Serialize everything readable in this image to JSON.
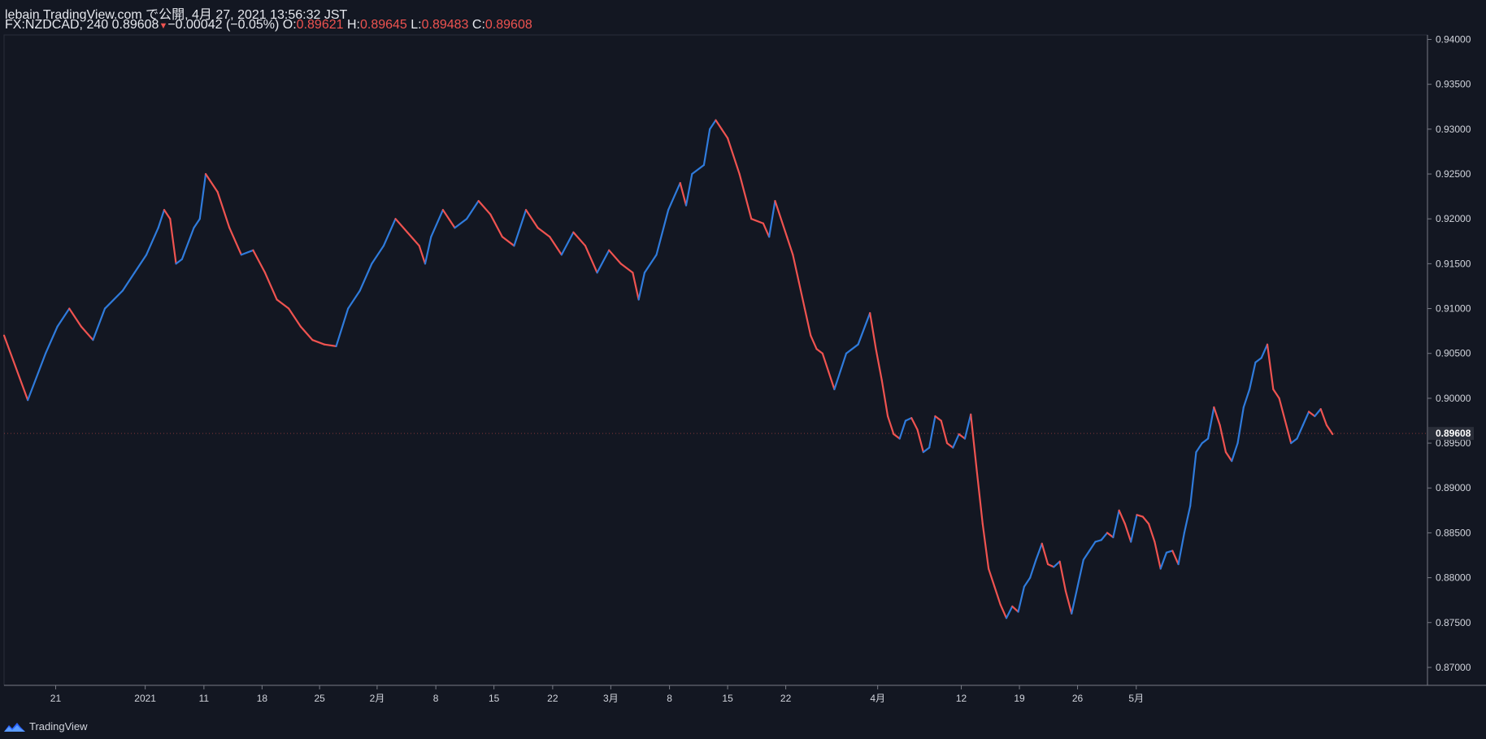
{
  "header": {
    "publish_line": "lebain TradingView.com で公開, 4月 27, 2021 13:56:32 JST",
    "symbol": "FX:NZDCAD, 240",
    "last": "0.89608",
    "change_arrow": "▼",
    "change": "−0.00042 (−0.05%)",
    "o_label": "O:",
    "o_value": "0.89621",
    "h_label": "H:",
    "h_value": "0.89645",
    "l_label": "L:",
    "l_value": "0.89483",
    "c_label": "C:",
    "c_value": "0.89608"
  },
  "footer": {
    "brand": "TradingView",
    "logo_icon": "tradingview-logo-icon"
  },
  "colors": {
    "background": "#131722",
    "up": "#2f7bdc",
    "down": "#ef5350",
    "axis": "#787b86",
    "text": "#d1d4dc"
  },
  "chart_data": {
    "type": "line",
    "series": [
      {
        "values": [
          [
            0,
            0.907
          ],
          [
            4,
            0.8998
          ],
          [
            7,
            0.905
          ],
          [
            9,
            0.908
          ],
          [
            11,
            0.91
          ],
          [
            13,
            0.908
          ],
          [
            15,
            0.9065
          ],
          [
            17,
            0.91
          ],
          [
            20,
            0.912
          ],
          [
            22,
            0.914
          ],
          [
            24,
            0.916
          ],
          [
            26,
            0.919
          ],
          [
            27,
            0.921
          ],
          [
            28,
            0.92
          ],
          [
            29,
            0.915
          ],
          [
            30,
            0.9155
          ],
          [
            32,
            0.919
          ],
          [
            33,
            0.92
          ],
          [
            34,
            0.925
          ],
          [
            36,
            0.923
          ],
          [
            38,
            0.919
          ],
          [
            40,
            0.916
          ],
          [
            42,
            0.9165
          ],
          [
            44,
            0.914
          ],
          [
            46,
            0.911
          ],
          [
            48,
            0.91
          ],
          [
            50,
            0.908
          ],
          [
            52,
            0.9065
          ],
          [
            54,
            0.906
          ],
          [
            56,
            0.9058
          ],
          [
            58,
            0.91
          ],
          [
            60,
            0.912
          ],
          [
            62,
            0.915
          ],
          [
            64,
            0.917
          ],
          [
            66,
            0.92
          ],
          [
            68,
            0.9185
          ],
          [
            70,
            0.917
          ],
          [
            71,
            0.915
          ],
          [
            72,
            0.918
          ],
          [
            74,
            0.921
          ],
          [
            76,
            0.919
          ],
          [
            78,
            0.92
          ],
          [
            80,
            0.922
          ],
          [
            82,
            0.9205
          ],
          [
            84,
            0.918
          ],
          [
            86,
            0.917
          ],
          [
            88,
            0.921
          ],
          [
            90,
            0.919
          ],
          [
            92,
            0.918
          ],
          [
            94,
            0.916
          ],
          [
            96,
            0.9185
          ],
          [
            98,
            0.917
          ],
          [
            100,
            0.914
          ],
          [
            102,
            0.9165
          ],
          [
            104,
            0.915
          ],
          [
            106,
            0.914
          ],
          [
            107,
            0.911
          ],
          [
            108,
            0.914
          ],
          [
            110,
            0.916
          ],
          [
            112,
            0.921
          ],
          [
            114,
            0.924
          ],
          [
            115,
            0.9215
          ],
          [
            116,
            0.925
          ],
          [
            118,
            0.926
          ],
          [
            119,
            0.93
          ],
          [
            120,
            0.931
          ],
          [
            121,
            0.93
          ],
          [
            122,
            0.929
          ],
          [
            124,
            0.925
          ],
          [
            126,
            0.92
          ],
          [
            128,
            0.9195
          ],
          [
            129,
            0.918
          ],
          [
            130,
            0.922
          ],
          [
            132,
            0.918
          ],
          [
            133,
            0.916
          ],
          [
            134,
            0.913
          ],
          [
            135,
            0.91
          ],
          [
            136,
            0.907
          ],
          [
            137,
            0.9055
          ],
          [
            138,
            0.905
          ],
          [
            139,
            0.903
          ],
          [
            140,
            0.901
          ],
          [
            141,
            0.903
          ],
          [
            142,
            0.905
          ],
          [
            144,
            0.906
          ],
          [
            146,
            0.9095
          ],
          [
            147,
            0.9055
          ],
          [
            148,
            0.902
          ],
          [
            149,
            0.898
          ],
          [
            150,
            0.896
          ],
          [
            151,
            0.8955
          ],
          [
            152,
            0.8975
          ],
          [
            153,
            0.8978
          ],
          [
            154,
            0.8965
          ],
          [
            155,
            0.894
          ],
          [
            156,
            0.8945
          ],
          [
            157,
            0.898
          ],
          [
            158,
            0.8975
          ],
          [
            159,
            0.895
          ],
          [
            160,
            0.8945
          ],
          [
            161,
            0.896
          ],
          [
            162,
            0.8955
          ],
          [
            163,
            0.8982
          ],
          [
            164,
            0.892
          ],
          [
            165,
            0.886
          ],
          [
            166,
            0.881
          ],
          [
            167,
            0.879
          ],
          [
            168,
            0.877
          ],
          [
            169,
            0.8755
          ],
          [
            170,
            0.8768
          ],
          [
            171,
            0.8762
          ],
          [
            172,
            0.879
          ],
          [
            173,
            0.88
          ],
          [
            174,
            0.882
          ],
          [
            175,
            0.8838
          ],
          [
            176,
            0.8815
          ],
          [
            177,
            0.8812
          ],
          [
            178,
            0.8818
          ],
          [
            179,
            0.8785
          ],
          [
            180,
            0.876
          ],
          [
            181,
            0.879
          ],
          [
            182,
            0.882
          ],
          [
            183,
            0.883
          ],
          [
            184,
            0.884
          ],
          [
            185,
            0.8842
          ],
          [
            186,
            0.885
          ],
          [
            187,
            0.8845
          ],
          [
            188,
            0.8875
          ],
          [
            189,
            0.886
          ],
          [
            190,
            0.884
          ],
          [
            191,
            0.887
          ],
          [
            192,
            0.8868
          ],
          [
            193,
            0.886
          ],
          [
            194,
            0.884
          ],
          [
            195,
            0.881
          ],
          [
            196,
            0.8828
          ],
          [
            197,
            0.883
          ],
          [
            198,
            0.8815
          ],
          [
            199,
            0.885
          ],
          [
            200,
            0.888
          ],
          [
            201,
            0.894
          ],
          [
            202,
            0.895
          ],
          [
            203,
            0.8955
          ],
          [
            204,
            0.899
          ],
          [
            205,
            0.897
          ],
          [
            206,
            0.894
          ],
          [
            207,
            0.893
          ],
          [
            208,
            0.895
          ],
          [
            209,
            0.899
          ],
          [
            210,
            0.901
          ],
          [
            211,
            0.904
          ],
          [
            212,
            0.9045
          ],
          [
            213,
            0.906
          ],
          [
            214,
            0.901
          ],
          [
            215,
            0.9
          ],
          [
            216,
            0.8975
          ],
          [
            217,
            0.895
          ],
          [
            218,
            0.8955
          ],
          [
            219,
            0.897
          ],
          [
            220,
            0.8985
          ],
          [
            221,
            0.898
          ],
          [
            222,
            0.8988
          ],
          [
            223,
            0.897
          ],
          [
            224,
            0.896
          ]
        ]
      }
    ],
    "x_range": [
      0,
      240
    ],
    "x_ticks": [
      {
        "x": 8.7,
        "label": "21"
      },
      {
        "x": 23.8,
        "label": "2021"
      },
      {
        "x": 33.7,
        "label": "11"
      },
      {
        "x": 43.5,
        "label": "18"
      },
      {
        "x": 53.2,
        "label": "25"
      },
      {
        "x": 62.9,
        "label": "2月"
      },
      {
        "x": 72.8,
        "label": "8"
      },
      {
        "x": 82.6,
        "label": "15"
      },
      {
        "x": 92.5,
        "label": "22"
      },
      {
        "x": 102.3,
        "label": "3月"
      },
      {
        "x": 112.2,
        "label": "8"
      },
      {
        "x": 122.0,
        "label": "15"
      },
      {
        "x": 131.8,
        "label": "22"
      },
      {
        "x": 147.3,
        "label": "4月"
      },
      {
        "x": 161.4,
        "label": "12"
      },
      {
        "x": 171.2,
        "label": "19"
      },
      {
        "x": 181.0,
        "label": "26"
      },
      {
        "x": 190.9,
        "label": "5月"
      }
    ],
    "y_range": [
      0.868,
      0.9405
    ],
    "y_ticks": [
      "0.94000",
      "0.93500",
      "0.93000",
      "0.92500",
      "0.92000",
      "0.91500",
      "0.91000",
      "0.90500",
      "0.90000",
      "0.89500",
      "0.89000",
      "0.88500",
      "0.88000",
      "0.87500",
      "0.87000"
    ],
    "last_price": 0.89608,
    "last_price_label": "0.89608",
    "legend": "none",
    "grid": false
  }
}
